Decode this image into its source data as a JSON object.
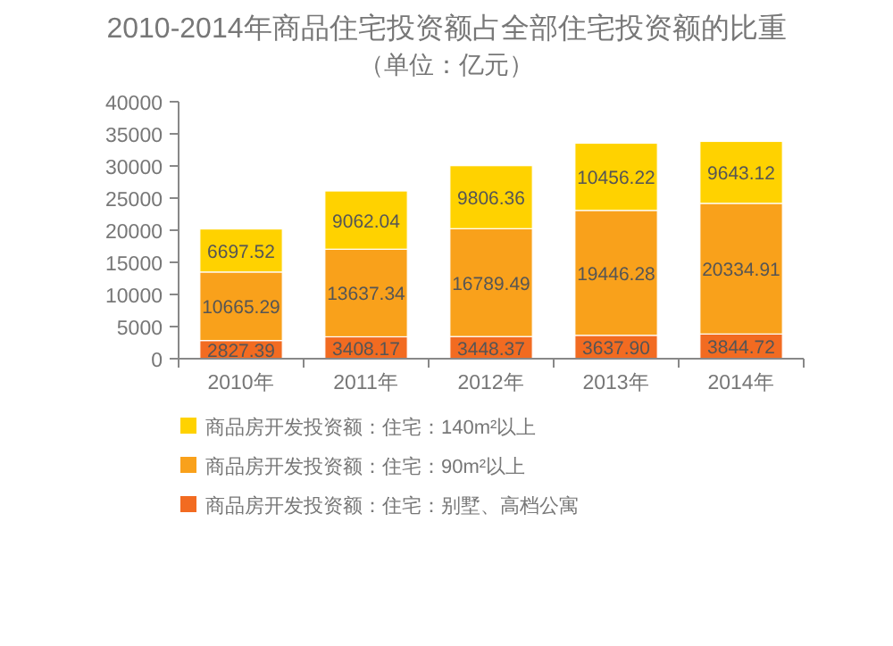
{
  "chart_data": {
    "type": "bar",
    "stacked": true,
    "title": "2010-2014年商品住宅投资额占全部住宅投资额的比重",
    "subtitle": "（单位：亿元）",
    "categories": [
      "2010年",
      "2011年",
      "2012年",
      "2013年",
      "2014年"
    ],
    "ylim": [
      0,
      40000
    ],
    "yticks": [
      0,
      5000,
      10000,
      15000,
      20000,
      25000,
      30000,
      35000,
      40000
    ],
    "legend": "bottom",
    "grid": false,
    "series": [
      {
        "name": "商品房开发投资额：住宅：别墅、高档公寓",
        "color": "#f26b21",
        "values": [
          2827.39,
          3408.17,
          3448.37,
          3637.9,
          3844.72
        ],
        "value_labels": [
          "2827.39",
          "3408.17",
          "3448.37",
          "3637.90",
          "3844.72"
        ]
      },
      {
        "name": "商品房开发投资额：住宅：90m²以上",
        "color": "#f9a11b",
        "values": [
          10665.29,
          13637.34,
          16789.49,
          19446.28,
          20334.91
        ],
        "value_labels": [
          "10665.29",
          "13637.34",
          "16789.49",
          "19446.28",
          "20334.91"
        ]
      },
      {
        "name": "商品房开发投资额：住宅：140m²以上",
        "color": "#ffd200",
        "values": [
          6697.52,
          9062.04,
          9806.36,
          10456.22,
          9643.12
        ],
        "value_labels": [
          "6697.52",
          "9062.04",
          "9806.36",
          "10456.22",
          "9643.12"
        ]
      }
    ]
  }
}
